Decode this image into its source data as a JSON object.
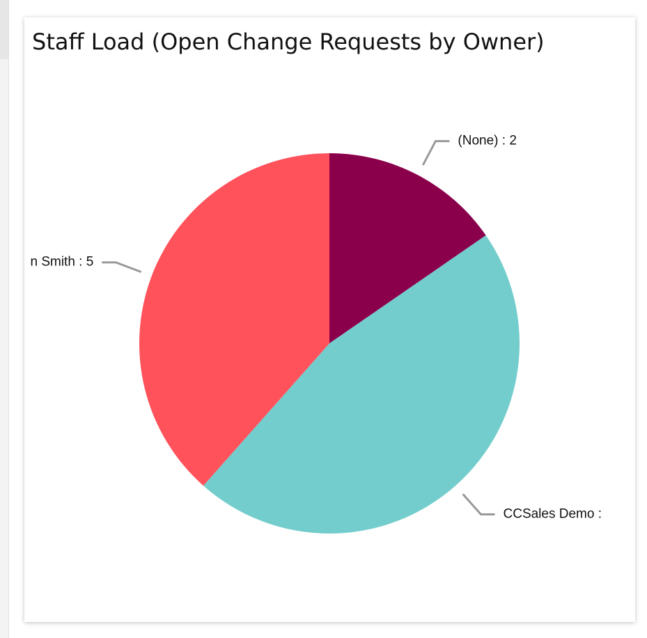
{
  "chart_data": {
    "type": "pie",
    "title": "Staff Load (Open Change Requests by Owner)",
    "labels": [
      "(None) : 2",
      "CCSales Demo :",
      "n Smith : 5"
    ],
    "values": [
      2,
      6,
      5
    ],
    "colors": [
      "#8b004b",
      "#73cdcc",
      "#ff525b"
    ]
  }
}
